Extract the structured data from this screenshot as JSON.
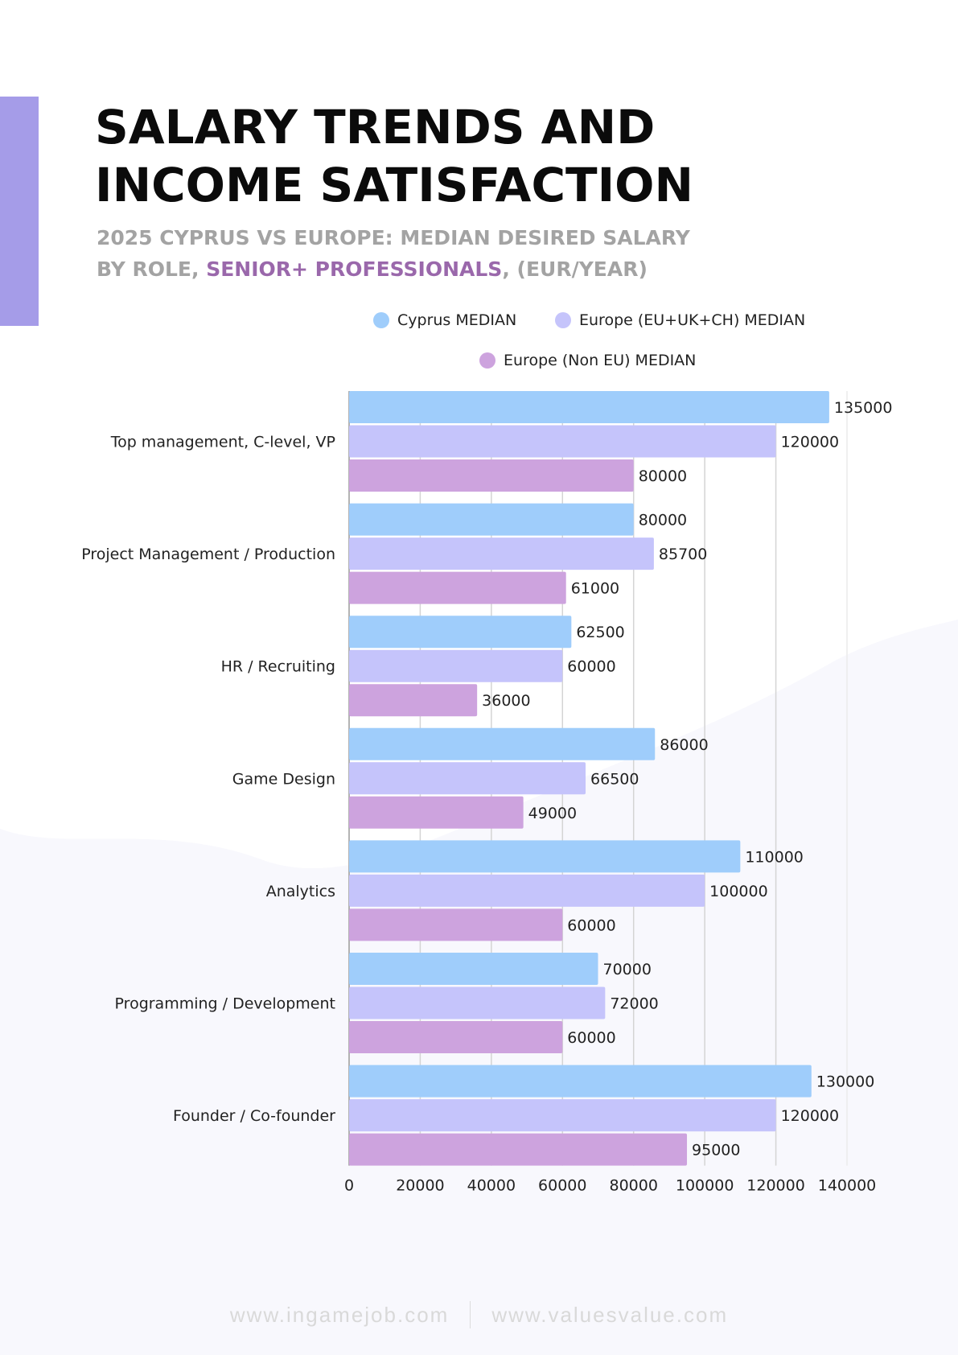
{
  "header": {
    "title_lines": [
      "SALARY TRENDS AND",
      "INCOME SATISFACTION"
    ],
    "subtitle_line1": "2025 CYPRUS VS EUROPE: MEDIAN DESIRED SALARY",
    "subtitle_line2_prefix": "BY ROLE, ",
    "subtitle_line2_highlight": "SENIOR+ PROFESSIONALS",
    "subtitle_line2_suffix": ", (EUR/YEAR)"
  },
  "colors": {
    "accent_bar": "#a59ce8",
    "highlight_text": "#9a68ab",
    "cyprus": "#9fcdfb",
    "europe_eu": "#c5c4fb",
    "europe_non_eu": "#cda3de"
  },
  "chart_data": {
    "type": "bar",
    "orientation": "horizontal",
    "title": "2025 Cyprus vs Europe: Median Desired Salary by Role, Senior+ Professionals, (EUR/Year)",
    "xlabel": "",
    "ylabel": "",
    "xlim": [
      0,
      140000
    ],
    "x_ticks": [
      "0",
      "20000",
      "40000",
      "60000",
      "80000",
      "100000",
      "120000",
      "140000"
    ],
    "x_tick_values": [
      0,
      20000,
      40000,
      60000,
      80000,
      100000,
      120000,
      140000
    ],
    "grid": true,
    "legend_position": "top",
    "categories": [
      "Top management, C-level, VP",
      "Project Management / Production",
      "HR / Recruiting",
      "Game Design",
      "Analytics",
      "Programming / Development",
      "Founder / Co-founder"
    ],
    "series": [
      {
        "name": "Cyprus MEDIAN",
        "color": "#9fcdfb",
        "values": [
          135000,
          80000,
          62500,
          86000,
          110000,
          70000,
          130000
        ]
      },
      {
        "name": "Europe (EU+UK+CH) MEDIAN",
        "color": "#c5c4fb",
        "values": [
          120000,
          85700,
          60000,
          66500,
          100000,
          72000,
          120000
        ]
      },
      {
        "name": "Europe (Non EU) MEDIAN",
        "color": "#cda3de",
        "values": [
          80000,
          61000,
          36000,
          49000,
          60000,
          60000,
          95000
        ]
      }
    ]
  },
  "footer": {
    "left_link": "www.ingamejob.com",
    "right_link": "www.valuesvalue.com"
  }
}
